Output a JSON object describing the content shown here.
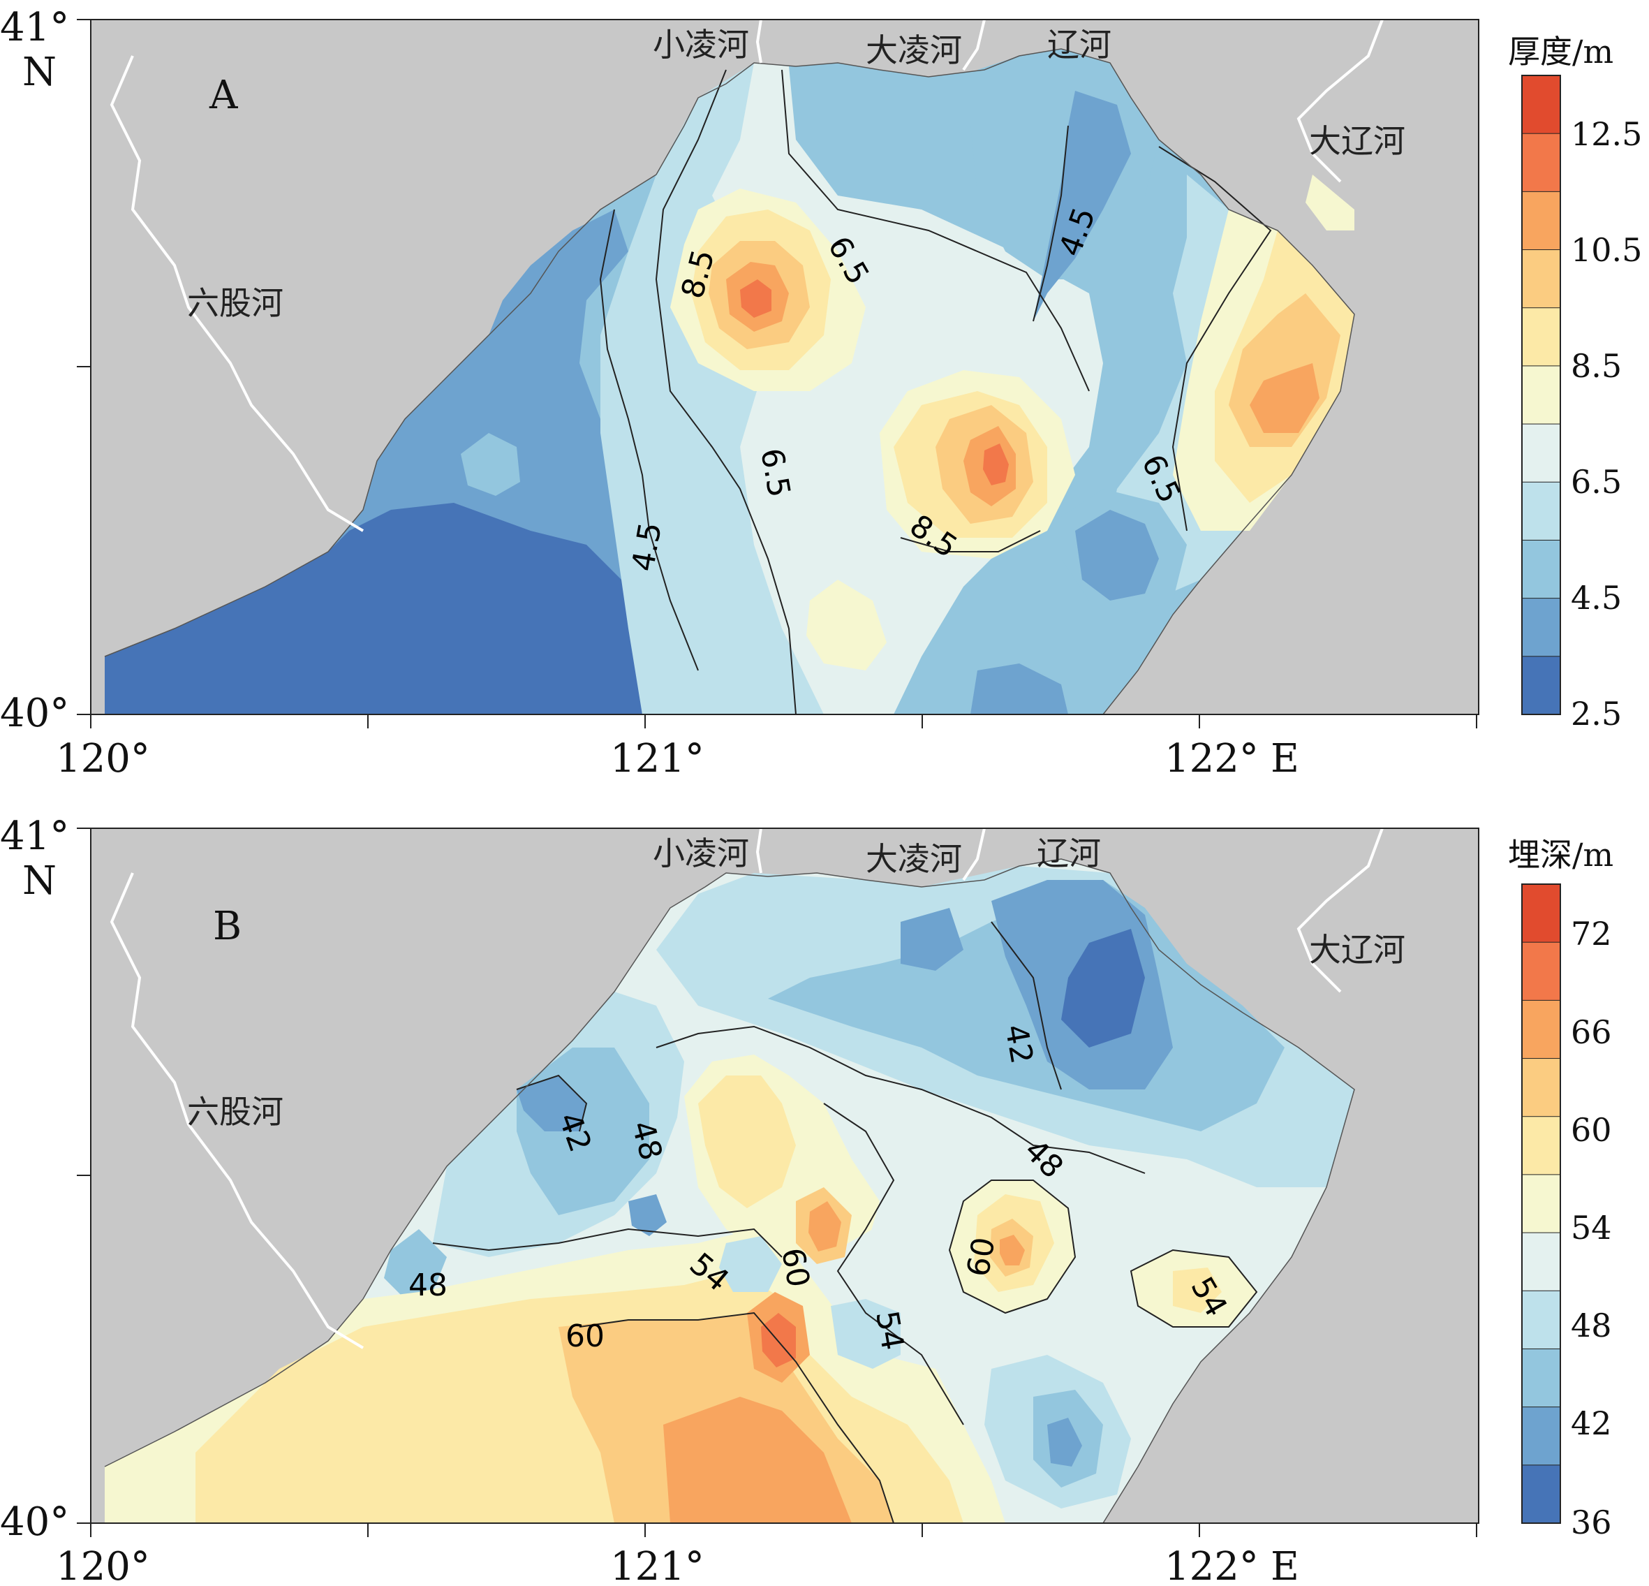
{
  "panels": [
    {
      "letter": "A",
      "colorbar_title": "厚度/m",
      "colorbar_ticks": [
        "12.5",
        "10.5",
        "8.5",
        "6.5",
        "4.5",
        "2.5"
      ],
      "colors": [
        "#e14b2e",
        "#f2784a",
        "#f8a55f",
        "#fbcc81",
        "#fce9a7",
        "#f6f7d0",
        "#e4f1ef",
        "#bee1eb",
        "#93c6de",
        "#6ea3cf",
        "#4674b7"
      ],
      "contour_labels": [
        "8.5",
        "6.5",
        "4.5",
        "6.5",
        "4.5",
        "8.5",
        "6.5"
      ],
      "rivers": [
        "小凌河",
        "大凌河",
        "辽河",
        "大辽河",
        "六股河"
      ]
    },
    {
      "letter": "B",
      "colorbar_title": "埋深/m",
      "colorbar_ticks": [
        "72",
        "66",
        "60",
        "54",
        "48",
        "42",
        "36"
      ],
      "colors": [
        "#e14b2e",
        "#f2784a",
        "#f8a55f",
        "#fbcc81",
        "#fce9a7",
        "#f6f7d0",
        "#e4f1ef",
        "#bee1eb",
        "#93c6de",
        "#6ea3cf",
        "#4674b7"
      ],
      "contour_labels": [
        "42",
        "42",
        "48",
        "48",
        "48",
        "54",
        "60",
        "60",
        "54",
        "60",
        "54"
      ],
      "rivers": [
        "小凌河",
        "大凌河",
        "辽河",
        "大辽河",
        "六股河"
      ]
    }
  ],
  "axes": {
    "lat_top": "41°",
    "lat_n": "N",
    "lat_bottom": "40°",
    "lon_labels": [
      "120°",
      "121°",
      "122°"
    ],
    "lon_e": "E"
  },
  "land_color": "#c8c8c8",
  "river_color": "#ffffff"
}
